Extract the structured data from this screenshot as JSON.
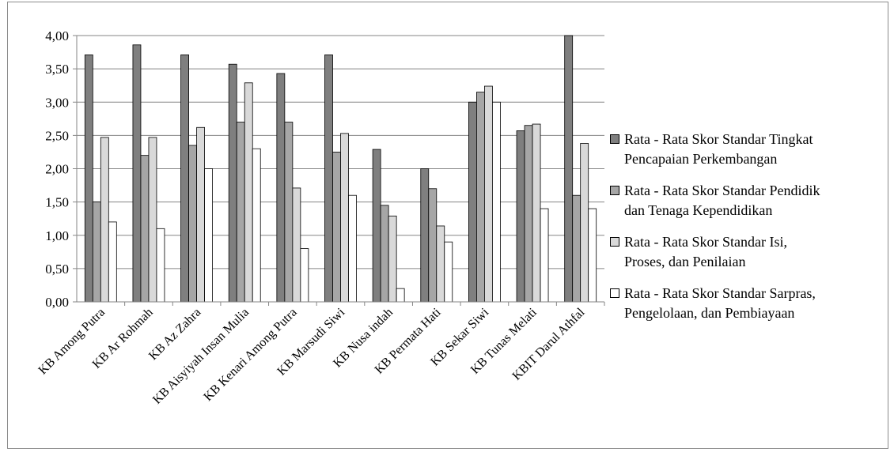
{
  "chart_data": {
    "type": "bar",
    "categories": [
      "KB Among Putra",
      "KB Ar Rohmah",
      "KB Az Zahra",
      "KB Aisyiyah Insan Mulia",
      "KB Kenari Among Putra",
      "KB Marsudi Siwi",
      "KB Nusa indah",
      "KB Permata Hati",
      "KB Sekar Siwi",
      "KB Tunas Melati",
      "KBIT Darul Athfal"
    ],
    "series": [
      {
        "name": "Rata - Rata Skor Standar Tingkat Pencapaian Perkembangan",
        "color": "#7f7f7f",
        "values": [
          3.71,
          3.86,
          3.71,
          3.57,
          3.43,
          3.71,
          2.29,
          2.0,
          3.0,
          2.57,
          4.0
        ]
      },
      {
        "name": "Rata - Rata Skor Standar Pendidik dan Tenaga Kependidikan",
        "color": "#a6a6a6",
        "values": [
          1.5,
          2.2,
          2.35,
          2.7,
          2.7,
          2.25,
          1.45,
          1.7,
          3.15,
          2.65,
          1.6
        ]
      },
      {
        "name": "Rata - Rata Skor Standar Isi, Proses, dan Penilaian",
        "color": "#d9d9d9",
        "values": [
          2.47,
          2.47,
          2.62,
          3.29,
          1.71,
          2.53,
          1.29,
          1.14,
          3.24,
          2.67,
          2.38
        ]
      },
      {
        "name": "Rata - Rata Skor Standar Sarpras, Pengelolaan, dan Pembiayaan",
        "color": "#ffffff",
        "values": [
          1.2,
          1.1,
          2.0,
          2.3,
          0.8,
          1.6,
          0.2,
          0.9,
          3.0,
          1.4,
          1.4
        ]
      }
    ],
    "yticks": [
      "0,00",
      "0,50",
      "1,00",
      "1,50",
      "2,00",
      "2,50",
      "3,00",
      "3,50",
      "4,00"
    ],
    "ylim": [
      0,
      4
    ],
    "grid": true,
    "legend_position": "right",
    "legend_lines": [
      [
        "Rata - Rata Skor Standar Tingkat",
        "Pencapaian Perkembangan"
      ],
      [
        "Rata - Rata Skor Standar Pendidik",
        "dan Tenaga Kependidikan"
      ],
      [
        "Rata - Rata Skor Standar Isi,",
        "Proses, dan Penilaian"
      ],
      [
        "Rata - Rata Skor Standar Sarpras,",
        "Pengelolaan, dan Pembiayaan"
      ]
    ]
  }
}
